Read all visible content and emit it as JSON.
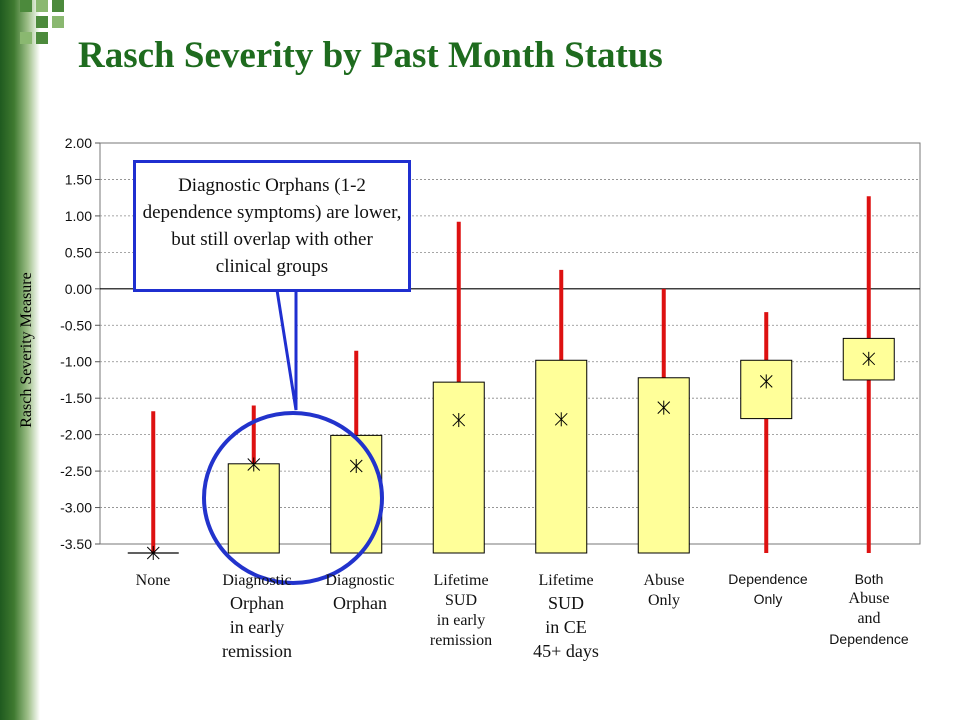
{
  "title": "Rasch Severity by Past Month Status",
  "colors": {
    "title": "#1e6b1e",
    "bar_fill": "#ffff99",
    "whisker": "#dd1111",
    "callout_border": "#1f2fd0",
    "circle": "#2233cc"
  },
  "chart_data": {
    "type": "bar",
    "title": "Rasch Severity by Past Month Status",
    "ylabel": "Rasch Severity Measure",
    "xlabel": "",
    "ylim": [
      -3.5,
      2.0
    ],
    "yticks": [
      "2.00",
      "1.50",
      "1.00",
      "0.50",
      "0.00",
      "-0.50",
      "-1.00",
      "-1.50",
      "-2.00",
      "-2.50",
      "-3.00",
      "-3.50"
    ],
    "grid": true,
    "categories": [
      [
        "None"
      ],
      [
        "Diagnostic",
        "Orphan",
        "in early",
        "remission"
      ],
      [
        "Diagnostic",
        "Orphan"
      ],
      [
        "Lifetime",
        "SUD",
        "in early",
        "remission"
      ],
      [
        "Lifetime",
        "SUD",
        "in CE",
        "45+ days"
      ],
      [
        "Abuse",
        "Only"
      ],
      [
        "Dependence",
        "Only"
      ],
      [
        "Both",
        "Abuse",
        "and",
        "Dependence"
      ]
    ],
    "bars": [
      {
        "lower": -3.7,
        "upper": -3.7,
        "mean": -3.7,
        "whisker_low": -3.7,
        "whisker_high": -1.68
      },
      {
        "lower": -3.7,
        "upper": -2.4,
        "mean": -2.41,
        "whisker_low": -2.4,
        "whisker_high": -1.6
      },
      {
        "lower": -3.7,
        "upper": -2.01,
        "mean": -2.43,
        "whisker_low": -2.01,
        "whisker_high": -0.85
      },
      {
        "lower": -3.7,
        "upper": -1.28,
        "mean": -1.8,
        "whisker_low": -1.28,
        "whisker_high": 0.92
      },
      {
        "lower": -3.7,
        "upper": -0.98,
        "mean": -1.79,
        "whisker_low": -0.98,
        "whisker_high": 0.26
      },
      {
        "lower": -3.7,
        "upper": -1.22,
        "mean": -1.63,
        "whisker_low": -1.22,
        "whisker_high": 0.0
      },
      {
        "lower": -1.78,
        "upper": -0.98,
        "mean": -1.27,
        "whisker_low": -3.7,
        "whisker_high": -0.32
      },
      {
        "lower": -1.25,
        "upper": -0.68,
        "mean": -0.96,
        "whisker_low": -3.7,
        "whisker_high": 1.27
      }
    ],
    "annotation": "Diagnostic Orphans (1-2 dependence symptoms) are lower, but still overlap with other clinical groups"
  }
}
